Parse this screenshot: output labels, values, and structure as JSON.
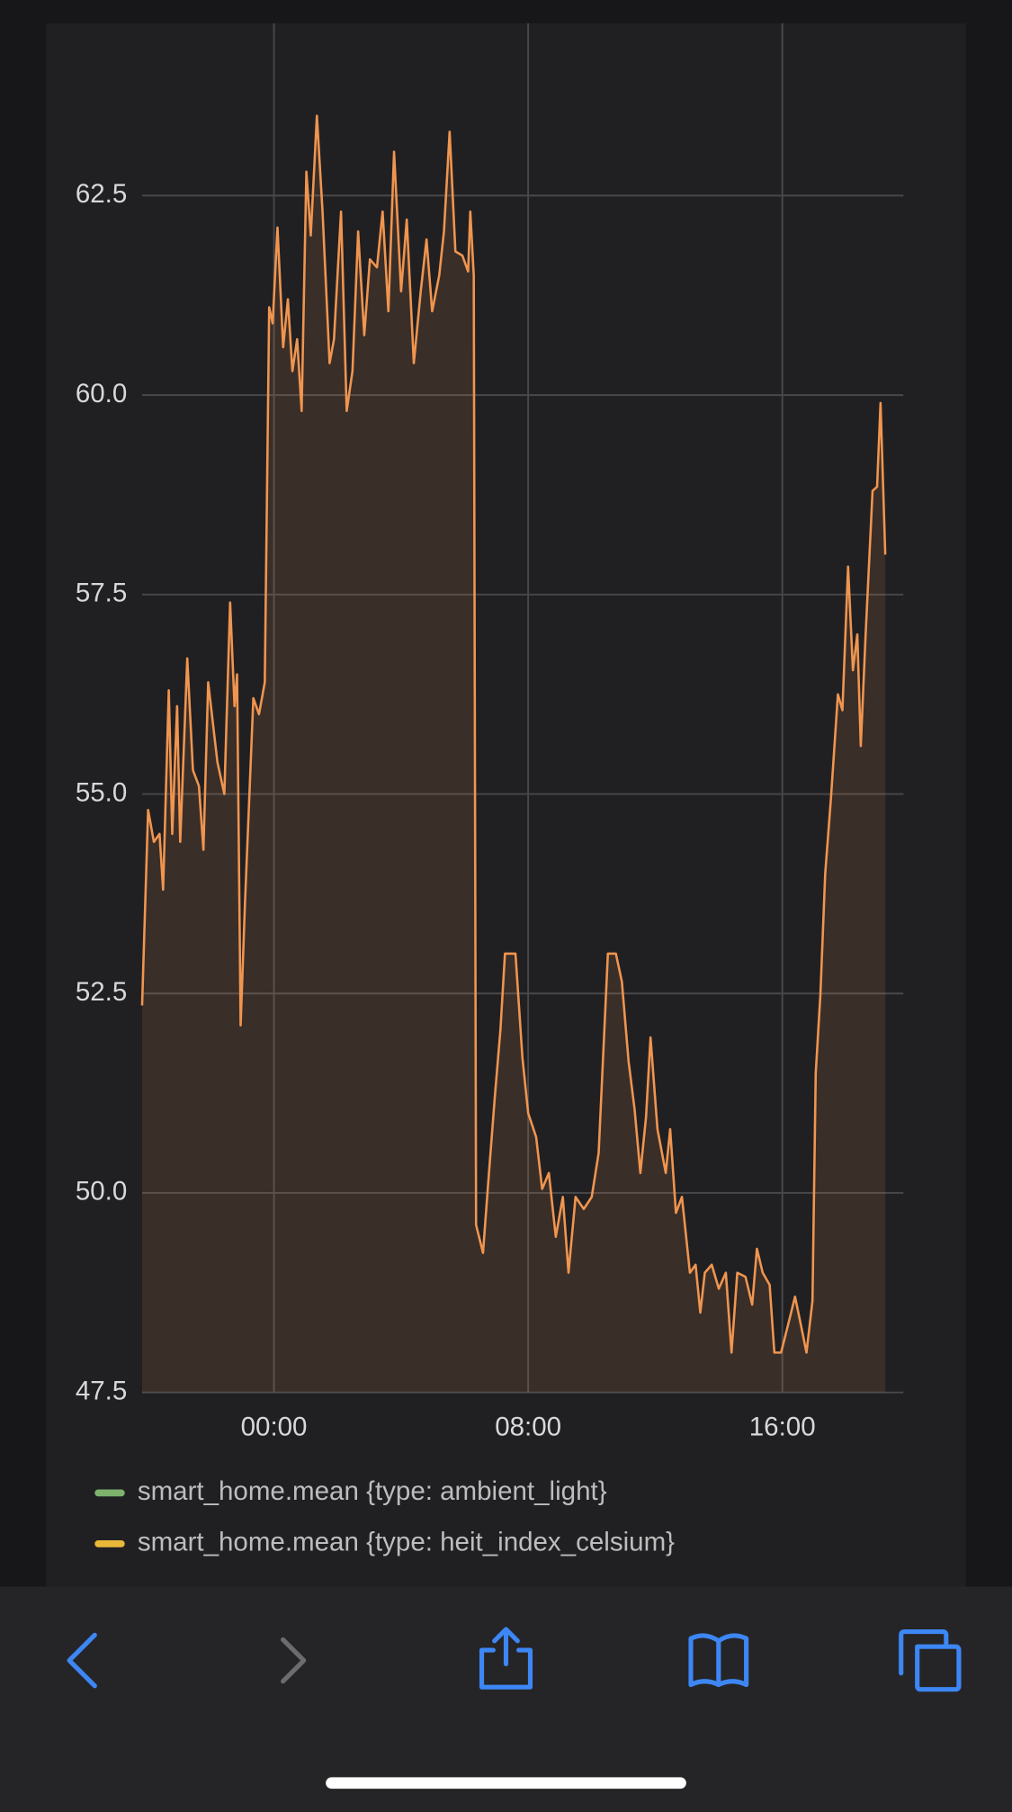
{
  "chart_data": {
    "type": "line",
    "x": [
      -4.15,
      -3.96,
      -3.78,
      -3.6,
      -3.49,
      -3.31,
      -3.2,
      -3.05,
      -2.95,
      -2.73,
      -2.55,
      -2.36,
      -2.22,
      -2.07,
      -1.78,
      -1.56,
      -1.38,
      -1.24,
      -1.16,
      -1.05,
      -0.91,
      -0.65,
      -0.47,
      -0.29,
      -0.15,
      -0.04,
      0.11,
      0.29,
      0.44,
      0.58,
      0.73,
      0.87,
      1.02,
      1.16,
      1.35,
      1.53,
      1.75,
      1.89,
      2.11,
      2.29,
      2.47,
      2.65,
      2.84,
      3.02,
      3.24,
      3.42,
      3.6,
      3.78,
      4.0,
      4.18,
      4.4,
      4.62,
      4.8,
      4.98,
      5.2,
      5.35,
      5.53,
      5.71,
      5.93,
      6.11,
      6.18,
      6.29,
      6.36,
      6.58,
      6.73,
      6.95,
      7.13,
      7.27,
      7.6,
      7.82,
      8.0,
      8.25,
      8.44,
      8.65,
      8.87,
      9.09,
      9.27,
      9.49,
      9.75,
      10.0,
      10.22,
      10.51,
      10.76,
      10.95,
      11.16,
      11.35,
      11.53,
      11.71,
      11.85,
      12.07,
      12.33,
      12.47,
      12.65,
      12.84,
      13.09,
      13.27,
      13.42,
      13.56,
      13.78,
      14.0,
      14.22,
      14.4,
      14.58,
      14.84,
      15.05,
      15.2,
      15.38,
      15.6,
      15.75,
      15.96,
      16.18,
      16.4,
      16.58,
      16.76,
      16.95,
      17.05,
      17.2,
      17.35,
      17.53,
      17.75,
      17.89,
      18.07,
      18.22,
      18.36,
      18.47,
      18.62,
      18.84,
      18.98,
      19.09,
      19.24
    ],
    "values": [
      52.35,
      54.8,
      54.4,
      54.5,
      53.8,
      56.3,
      54.5,
      56.1,
      54.4,
      56.7,
      55.3,
      55.1,
      54.3,
      56.4,
      55.4,
      55.0,
      57.4,
      56.1,
      56.5,
      52.1,
      53.65,
      56.2,
      56.0,
      56.4,
      61.1,
      60.9,
      62.1,
      60.6,
      61.2,
      60.3,
      60.7,
      59.8,
      62.8,
      62.0,
      63.5,
      62.3,
      60.4,
      60.7,
      62.3,
      59.8,
      60.3,
      62.05,
      60.75,
      61.7,
      61.6,
      62.3,
      61.05,
      63.05,
      61.3,
      62.2,
      60.4,
      61.3,
      61.95,
      61.05,
      61.5,
      62.05,
      63.3,
      61.8,
      61.75,
      61.55,
      62.3,
      61.5,
      49.6,
      49.25,
      50.05,
      51.2,
      52.05,
      53.0,
      53.0,
      51.7,
      51.0,
      50.7,
      50.05,
      50.25,
      49.45,
      49.95,
      49.0,
      49.95,
      49.8,
      49.95,
      50.5,
      53.0,
      53.0,
      52.65,
      51.65,
      51.05,
      50.25,
      50.95,
      51.95,
      50.8,
      50.25,
      50.8,
      49.75,
      49.95,
      49.0,
      49.1,
      48.5,
      49.0,
      49.1,
      48.8,
      49.0,
      48.0,
      49.0,
      48.95,
      48.6,
      49.3,
      49.0,
      48.85,
      48.0,
      48.0,
      48.35,
      48.7,
      48.35,
      48.0,
      48.65,
      51.5,
      52.5,
      54.0,
      54.95,
      56.25,
      56.05,
      57.85,
      56.55,
      57.0,
      55.6,
      57.0,
      58.8,
      58.85,
      59.9,
      58.0
    ],
    "color": "#f0954f",
    "xlim": [
      -4.15,
      19.81
    ],
    "ylim": [
      47.5,
      64.66
    ],
    "xticks": [
      {
        "value": 0,
        "label": "00:00"
      },
      {
        "value": 8,
        "label": "08:00"
      },
      {
        "value": 16,
        "label": "16:00"
      }
    ],
    "yticks": [
      47.5,
      {
        "value": 50,
        "label": "50.0"
      },
      52.5,
      {
        "value": 55,
        "label": "55.0"
      },
      57.5,
      {
        "value": 60,
        "label": "60.0"
      },
      62.5
    ],
    "grid": true,
    "legend": [
      {
        "name": "smart_home.mean {type: ambient_light}",
        "color": "#7eb26d"
      },
      {
        "name": "smart_home.mean {type: heit_index_celsium}",
        "color": "#eab839"
      }
    ]
  }
}
